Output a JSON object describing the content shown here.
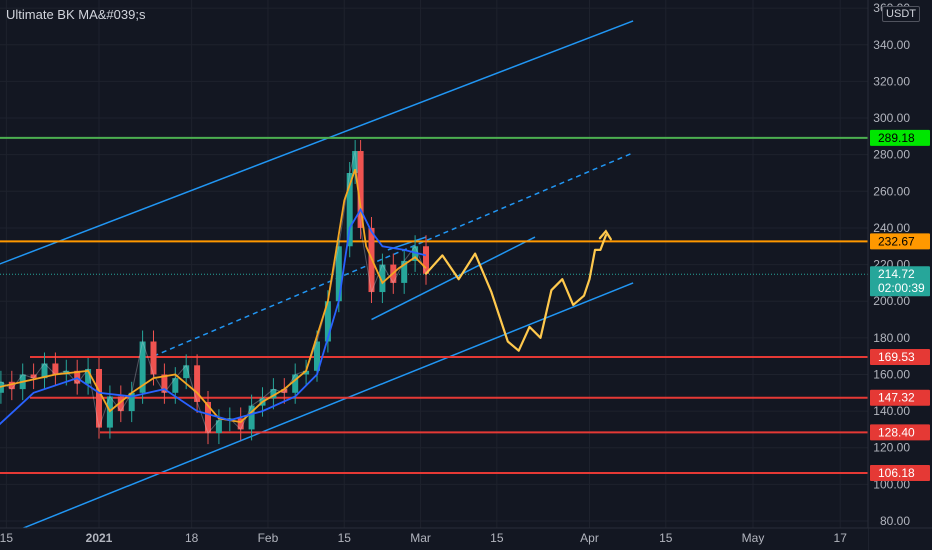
{
  "indicator_title": "Ultimate BK MA&#039;s",
  "currency_label": "USDT",
  "chart_data": {
    "type": "candlestick",
    "title": "",
    "y_axis_ticks": [
      80,
      100,
      120,
      140,
      160,
      180,
      200,
      220,
      240,
      260,
      280,
      300,
      320,
      340,
      360
    ],
    "y_axis_tick_labels": [
      "80.00",
      "100.00",
      "120.00",
      "140.00",
      "160.00",
      "180.00",
      "200.00",
      "220.00",
      "240.00",
      "260.00",
      "280.00",
      "300.00",
      "320.00",
      "340.00",
      "360.00"
    ],
    "x_axis_labels": [
      {
        "label": "15",
        "bold": false,
        "day": -17
      },
      {
        "label": "2021",
        "bold": true,
        "day": 0
      },
      {
        "label": "18",
        "bold": false,
        "day": 17
      },
      {
        "label": "Feb",
        "bold": false,
        "day": 31
      },
      {
        "label": "15",
        "bold": false,
        "day": 45
      },
      {
        "label": "Mar",
        "bold": false,
        "day": 59
      },
      {
        "label": "15",
        "bold": false,
        "day": 73
      },
      {
        "label": "Apr",
        "bold": false,
        "day": 90
      },
      {
        "label": "15",
        "bold": false,
        "day": 104
      },
      {
        "label": "May",
        "bold": false,
        "day": 120
      },
      {
        "label": "17",
        "bold": false,
        "day": 136
      }
    ],
    "price_series": {
      "days": [
        -20,
        -18,
        -16,
        -14,
        -12,
        -10,
        -8,
        -6,
        -4,
        -2,
        0,
        2,
        4,
        6,
        8,
        10,
        12,
        14,
        16,
        18,
        20,
        22,
        24,
        26,
        28,
        30,
        32,
        34,
        36,
        38,
        40,
        42,
        44,
        46,
        47,
        48,
        50,
        52,
        54,
        56,
        58,
        60
      ],
      "close": [
        150,
        156,
        152,
        160,
        158,
        166,
        160,
        162,
        155,
        163,
        131,
        148,
        140,
        150,
        178,
        160,
        150,
        158,
        165,
        145,
        128,
        135,
        136,
        130,
        143,
        147,
        152,
        150,
        160,
        162,
        178,
        200,
        230,
        270,
        282,
        240,
        205,
        220,
        210,
        222,
        230,
        215
      ]
    },
    "ma_series": [
      {
        "color": "#f5a623",
        "days": [
          -20,
          -14,
          -8,
          -2,
          2,
          6,
          10,
          14,
          18,
          22,
          26,
          30,
          34,
          38,
          42,
          45,
          47,
          49,
          52,
          55,
          58,
          60
        ],
        "values": [
          152,
          156,
          160,
          162,
          140,
          150,
          158,
          160,
          150,
          136,
          134,
          145,
          152,
          162,
          200,
          255,
          272,
          230,
          210,
          218,
          224,
          218
        ]
      },
      {
        "color": "#2962ff",
        "days": [
          -20,
          -12,
          -4,
          0,
          6,
          12,
          18,
          24,
          30,
          36,
          40,
          44,
          46,
          48,
          50,
          52,
          56,
          60
        ],
        "values": [
          128,
          150,
          158,
          150,
          148,
          152,
          140,
          135,
          140,
          148,
          160,
          200,
          240,
          250,
          238,
          230,
          228,
          225
        ]
      }
    ],
    "horizontal_levels": [
      {
        "value": 289.18,
        "label": "289.18",
        "color": "#4caf50",
        "label_bg": "#00e600",
        "label_color": "#000000"
      },
      {
        "value": 232.67,
        "label": "232.67",
        "color": "#ff9800",
        "label_bg": "#ff9800",
        "label_color": "#000000"
      },
      {
        "value": 214.72,
        "label": "214.72",
        "sublabel": "02:00:39",
        "color": "#26a69a",
        "label_bg": "#26a69a",
        "label_color": "#ffffff",
        "dotted": true
      },
      {
        "value": 169.53,
        "label": "169.53",
        "color": "#e53935",
        "label_bg": "#e53935",
        "label_color": "#ffffff"
      },
      {
        "value": 147.32,
        "label": "147.32",
        "color": "#e53935",
        "label_bg": "#e53935",
        "label_color": "#ffffff"
      },
      {
        "value": 128.4,
        "label": "128.40",
        "color": "#e53935",
        "label_bg": "#e53935",
        "label_color": "#ffffff"
      },
      {
        "value": 106.18,
        "label": "106.18",
        "color": "#e53935",
        "label_bg": "#e53935",
        "label_color": "#ffffff"
      }
    ],
    "trendlines": [
      {
        "color": "#2196f3",
        "dashed": false,
        "from": [
          -22,
          216
        ],
        "to": [
          98,
          353
        ]
      },
      {
        "color": "#2196f3",
        "dashed": false,
        "from": [
          -14,
          76
        ],
        "to": [
          98,
          210
        ]
      },
      {
        "color": "#2196f3",
        "dashed": true,
        "from": [
          10,
          170
        ],
        "to": [
          98,
          281
        ]
      },
      {
        "color": "#2196f3",
        "dashed": false,
        "from": [
          50,
          190
        ],
        "to": [
          80,
          235
        ]
      },
      {
        "color": "#2196f3",
        "dashed": false,
        "from": [
          53,
          228
        ],
        "to": [
          60,
          235
        ]
      }
    ],
    "projection": {
      "color": "#ffc94d",
      "days": [
        60,
        63,
        66,
        69,
        72,
        75,
        77,
        79,
        81,
        83,
        85,
        87,
        89,
        90,
        91,
        92,
        93
      ],
      "values": [
        215,
        225,
        212,
        226,
        205,
        178,
        173,
        186,
        180,
        206,
        212,
        198,
        203,
        212,
        228,
        228,
        236
      ]
    },
    "grid": true,
    "legend": "none"
  }
}
